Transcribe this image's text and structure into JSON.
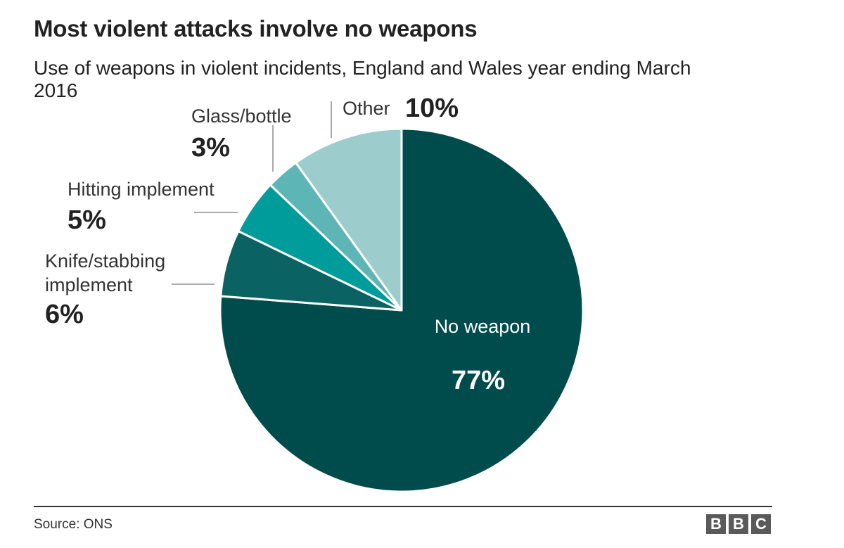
{
  "title": "Most violent attacks involve no weapons",
  "subtitle": "Use of weapons in violent incidents, England and Wales year ending March 2016",
  "source": "Source: ONS",
  "logo": [
    "B",
    "B",
    "C"
  ],
  "chart_data": {
    "type": "pie",
    "title": "Most violent attacks involve no weapons",
    "subtitle": "Use of weapons in violent incidents, England and Wales year ending March 2016",
    "slices": [
      {
        "label": "No weapon",
        "value": 77,
        "value_label": "77%",
        "color": "#004c4c"
      },
      {
        "label": "Knife/stabbing implement",
        "lines": [
          "Knife/stabbing",
          "implement"
        ],
        "value": 6,
        "value_label": "6%",
        "color": "#0a6262"
      },
      {
        "label": "Hitting implement",
        "lines": [
          "Hitting implement"
        ],
        "value": 5,
        "value_label": "5%",
        "color": "#009c9c"
      },
      {
        "label": "Glass/bottle",
        "lines": [
          "Glass/bottle"
        ],
        "value": 3,
        "value_label": "3%",
        "color": "#5db6b5"
      },
      {
        "label": "Other",
        "lines": [
          "Other"
        ],
        "value": 10,
        "value_label": "10%",
        "color": "#9ccdcc"
      }
    ],
    "start": "12 o'clock",
    "direction": "clockwise",
    "legend": "none (direct labels)"
  }
}
